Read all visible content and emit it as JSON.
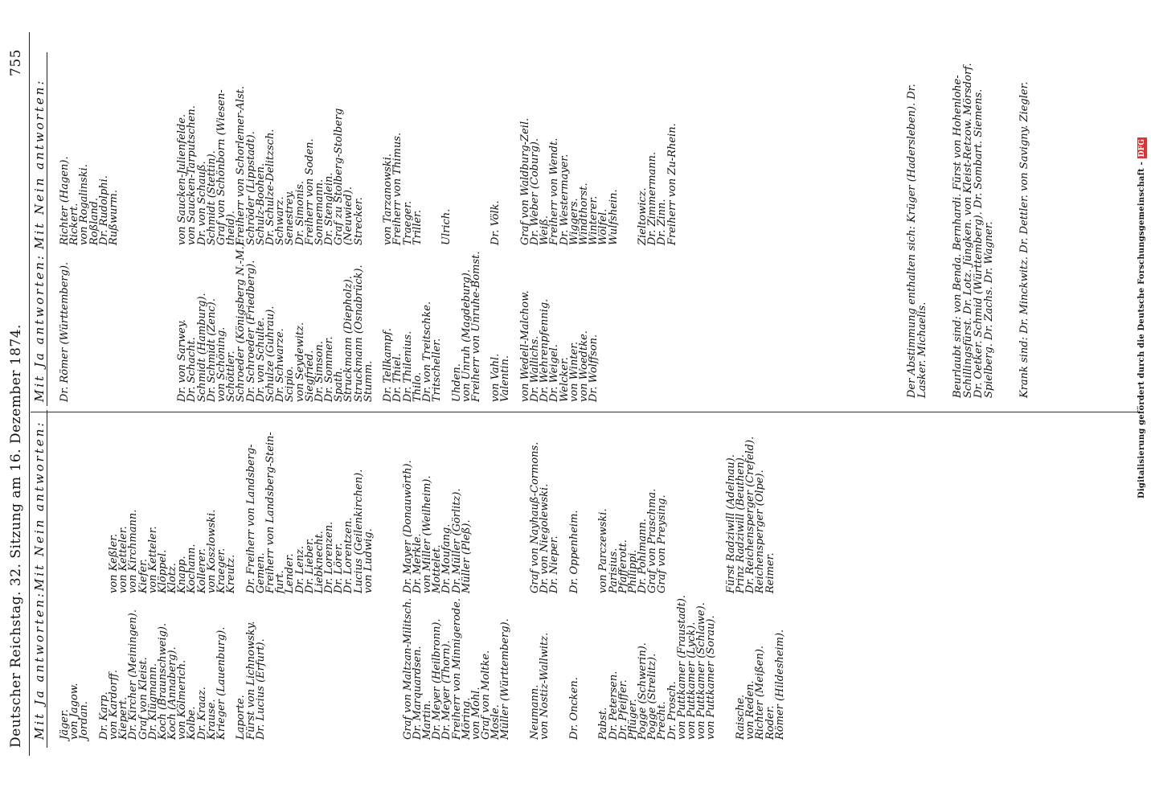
{
  "header": {
    "title": "Deutscher Reichstag. 32. Sitzung am 16. Dezember 1874.",
    "page_number": "755"
  },
  "left": {
    "ja_heading": "Mit Ja antworten:",
    "nein_heading": "Mit Nein antworten:",
    "ja": [
      "Jäger.",
      "von Jagow.",
      "Jordan.",
      "",
      "Dr. Karp.",
      "von Kardorff.",
      "Kiepert.",
      "Dr. Kircher (Meiningen).",
      "Graf von Kleist.",
      "Dr. Klügmann.",
      "Koch (Braunschweig).",
      "Koch (Annaberg).",
      "von Kölmerich.",
      "Kolbe.",
      "Dr. Kraaz.",
      "Krause.",
      "Krieger (Lauenburg).",
      "",
      "Laporte.",
      "Fürst von Lichnowsky.",
      "Dr. Lucius (Erfurt).",
      "",
      "",
      "",
      "",
      "",
      "",
      "",
      "",
      "",
      "",
      "",
      "",
      "",
      "",
      "Graf von Maltzan-Militsch.",
      "Dr. Marquardsen.",
      "Martin.",
      "Dr. Meyer (Heilbronn).",
      "Dr. Meyer (Thorn).",
      "Freiherr von Minnigerode.",
      "Möring.",
      "von Mohl.",
      "Graf von Moltke.",
      "Mosle.",
      "Müller (Württemberg).",
      "",
      "",
      "Neumann.",
      "von Nostiz-Wallwitz.",
      "",
      "",
      "Dr. Oncken.",
      "",
      "",
      "Pabst.",
      "Dr. Petersen.",
      "Dr. Pfeiffer.",
      "Pflüger.",
      "Pogge (Schwerin).",
      "Pogge (Strelitz).",
      "Precht.",
      "Dr. Prosch.",
      "von Puttkamer (Fraustadt).",
      "von Puttkamer (Lyck).",
      "von Puttkamer (Schlawe).",
      "von Puttkamer (Sorau).",
      "",
      "",
      "Raische.",
      "von Reden.",
      "Richter (Meißen).",
      "Roder.",
      "Römer (Hildesheim)."
    ],
    "nein": [
      "",
      "",
      "",
      "",
      "",
      "von Keßler.",
      "von Ketteler.",
      "von Kirchmann.",
      "Kiefer.",
      "von Ketteler.",
      "Klöppel.",
      "Klotz.",
      "Knapp.",
      "Kochann.",
      "Kollerer.",
      "von Koszlowski.",
      "Kraeger.",
      "Kreutz.",
      "",
      "Dr. Freiherr von Landsberg-",
      "    Gemen.",
      "Freiherr von Landsberg-Stein-",
      "    furt.",
      "Lender.",
      "Dr. Lenz.",
      "Dr. Lieber.",
      "Liebknecht.",
      "Dr. Lorenzen.",
      "Dr. Lörer.",
      "Dr. Lorentzen.",
      "Lucius (Geilenkirchen).",
      "von Ludwig.",
      "",
      "",
      "",
      "Dr. Mayer (Donauwörth).",
      "Dr. Merkle.",
      "von Miller (Weilheim).",
      "Mottelet.",
      "Dr. Moufang.",
      "Dr. Müller (Görlitz).",
      "Müller (Pleß).",
      "",
      "",
      "",
      "",
      "",
      "",
      "Graf von Nayhauß-Cormons.",
      "Dr. von Niegolewski.",
      "Dr. Nieper.",
      "",
      "Dr. Oppenheim.",
      "",
      "",
      "von Parczewski.",
      "Parisius.",
      "Pfafferott.",
      "Philippi.",
      "Dr. Pohlmann.",
      "Graf von Praschma.",
      "Graf von Preysing.",
      "",
      "",
      "",
      "",
      "",
      "",
      "Fürst Radziwill (Adelnau).",
      "Prinz Radziwill (Beuthen).",
      "Dr. Reichensperger (Crefeld).",
      "Reichensperger (Olpe).",
      "Reimer."
    ]
  },
  "right": {
    "ja_heading": "Mit Ja antworten:",
    "nein_heading": "Mit Nein antworten:",
    "ja": [
      "Dr. Römer (Württemberg).",
      "",
      "",
      "",
      "",
      "",
      "",
      "",
      "",
      "",
      "",
      "",
      "Dr. von Sarwey.",
      "Dr. Schacht.",
      "Schmidt (Hamburg).",
      "Dr. Schmidt (Zenc).",
      "von Schöning.",
      "Schöttler.",
      "Schroeder (Königsberg N.-M.).",
      "Dr. Schroeder (Friedberg).",
      "Dr. von Schulte.",
      "Schulze (Guhrau).",
      "Dr. Schwarze.",
      "Scipio.",
      "von Seydewitz.",
      "Siegfried.",
      "Dr. Simson.",
      "Dr. Sommer.",
      "Spath.",
      "Struckmann (Diepholz).",
      "Struckmann (Osnabrück).",
      "Stumm.",
      "",
      "Dr. Tellkampf.",
      "Dr. Thiel.",
      "Dr. Thilenius.",
      "Thilo.",
      "Dr. von Treitschke.",
      "Tritscheller.",
      "",
      "Uhden.",
      "von Unruh (Magdeburg).",
      "Freiherr von Unruhe-Bomst.",
      "",
      "von Vahl.",
      "Valentin.",
      "",
      "von Wedell-Malchow.",
      "Dr. Wallichs.",
      "Dr. Wehrenpfennig.",
      "Dr. Weigel.",
      "Welcker.",
      "von Winter.",
      "von Woedtke.",
      "Dr. Wolffson."
    ],
    "nein": [
      "Richter (Hagen).",
      "Rickert.",
      "von Rogalinski.",
      "Roßland.",
      "Dr. Rudolphi.",
      "Rußwurm.",
      "",
      "",
      "",
      "",
      "",
      "",
      "von Saucken-Julienfelde.",
      "von Saucken-Tarputschen.",
      "Dr. von Schauß.",
      "Schmidt (Stettin).",
      "Graf von Schönborn (Wiesen-",
      "    theid).",
      "Freiherr von Schorlemer-Alst.",
      "Schröder (Lippstadt).",
      "Schulz-Boohen.",
      "Dr. Schulze-Delitzsch.",
      "Schwarz.",
      "Senestrey.",
      "Dr. Simonis.",
      "Freiherr von Soden.",
      "Sonnemann.",
      "Dr. Stenglein.",
      "Graf zu Stolberg-Stolberg",
      "    (Neuwied).",
      "Strecker.",
      "",
      "",
      "von Tarzanowski.",
      "Freiherr von Thimus.",
      "Traeger.",
      "Triller.",
      "",
      "",
      "Ulrich.",
      "",
      "",
      "",
      "",
      "Dr. Völk.",
      "",
      "",
      "Graf von Waldburg-Zeil.",
      "Dr. Weber (Coburg).",
      "Weiß.",
      "Freiherr von Wendt.",
      "Dr. Westermayer.",
      "Wiggers.",
      "Windthorst.",
      "Winterer.",
      "Wölfel.",
      "Wulfshein.",
      "",
      "",
      "Zieltowicz.",
      "Dr. Zimmermann.",
      "Dr. Zinn.",
      "Freiherr von Zu-Rhein."
    ],
    "abstain": "Der Abstimmung enthalten sich: Krüger (Hadersleben). Dr. Lasker. Michaelis.",
    "absent": "Beurlaubt sind: von Benda. Bernhardi. Fürst von Hohenlohe-Schillingsfürst. Dr. Lotz. Jüngken. von Kleist-Retzow. Mörsdorf. Dr. Oetker. Schmid (Württemberg). Dr. Sombart. Siemens. Spielberg. Dr. Zachs. Dr. Wagner.",
    "sick": "Krank sind: Dr. Minckwitz. Dr. Dettler. von Savigny. Ziegler."
  },
  "footer": {
    "credit": "Digitalisierung gefördert durch die Deutsche Forschungsgemeinschaft -",
    "logo": "DFG"
  }
}
